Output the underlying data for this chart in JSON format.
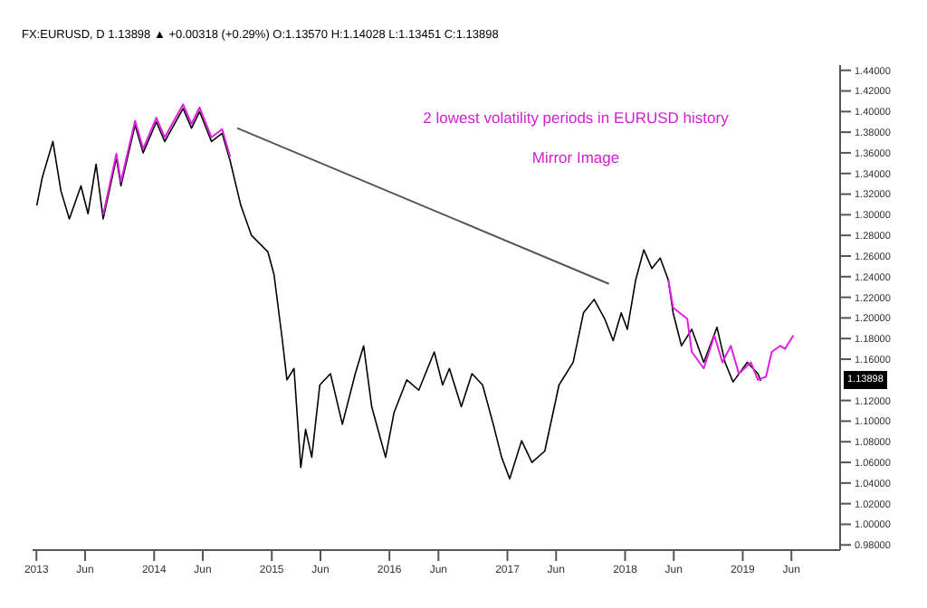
{
  "chart_data": {
    "type": "line",
    "title": "FX:EURUSD, D 1.13898 ▲ +0.00318 (+0.29%) O:1.13570 H:1.14028 L:1.13451 C:1.13898",
    "annotations": [
      "2 lowest volatility periods in EURUSD history",
      "Mirror Image",
      "1.13898"
    ],
    "series": [
      {
        "color": "#000000",
        "x": [
          "2013-01-02",
          "2013-01-19",
          "2013-02-21",
          "2013-03-18",
          "2013-04-13",
          "2013-05-19",
          "2013-06-10",
          "2013-07-05",
          "2013-07-27",
          "2013-09-06",
          "2013-09-20",
          "2013-11-03",
          "2013-11-28",
          "2014-01-08",
          "2014-02-03",
          "2014-04-01",
          "2014-04-27",
          "2014-05-22",
          "2014-06-28",
          "2014-07-31",
          "2014-08-25",
          "2014-09-27",
          "2014-10-30",
          "2014-12-20",
          "2015-01-08",
          "2015-02-03",
          "2015-02-17",
          "2015-03-11",
          "2015-04-01",
          "2015-04-16",
          "2015-05-05",
          "2015-05-30",
          "2015-07-02",
          "2015-08-08",
          "2015-09-17",
          "2015-10-13",
          "2015-11-07",
          "2015-12-20",
          "2016-01-15",
          "2016-02-24",
          "2016-04-01",
          "2016-05-19",
          "2016-06-14",
          "2016-07-05",
          "2016-08-11",
          "2016-09-13",
          "2016-10-16",
          "2016-11-18",
          "2016-12-14",
          "2017-01-08",
          "2017-02-14",
          "2017-03-18",
          "2017-04-27",
          "2017-06-10",
          "2017-07-24",
          "2017-08-25",
          "2017-09-27",
          "2017-10-30",
          "2017-11-25",
          "2017-12-20",
          "2018-01-08",
          "2018-02-03",
          "2018-02-28",
          "2018-03-25",
          "2018-04-20",
          "2018-05-15",
          "2018-05-30",
          "2018-06-25",
          "2018-07-27",
          "2018-09-02",
          "2018-10-13",
          "2018-11-07",
          "2018-12-02",
          "2019-01-15",
          "2019-02-17",
          "2019-02-26"
        ],
        "values": [
          1.309,
          1.336,
          1.371,
          1.323,
          1.296,
          1.328,
          1.301,
          1.349,
          1.296,
          1.355,
          1.328,
          1.387,
          1.36,
          1.39,
          1.371,
          1.403,
          1.384,
          1.4,
          1.371,
          1.379,
          1.352,
          1.309,
          1.28,
          1.264,
          1.242,
          1.178,
          1.14,
          1.151,
          1.055,
          1.092,
          1.065,
          1.135,
          1.146,
          1.097,
          1.146,
          1.173,
          1.114,
          1.065,
          1.108,
          1.14,
          1.13,
          1.167,
          1.135,
          1.151,
          1.114,
          1.146,
          1.135,
          1.097,
          1.065,
          1.044,
          1.081,
          1.06,
          1.071,
          1.135,
          1.157,
          1.205,
          1.218,
          1.199,
          1.178,
          1.205,
          1.189,
          1.237,
          1.266,
          1.248,
          1.258,
          1.237,
          1.205,
          1.173,
          1.189,
          1.157,
          1.191,
          1.157,
          1.138,
          1.157,
          1.146,
          1.139
        ]
      },
      {
        "color": "#e020e0",
        "x": [
          "2013-07-27",
          "2013-09-06",
          "2013-09-20",
          "2013-11-03",
          "2013-11-28",
          "2014-01-08",
          "2014-02-03",
          "2014-04-01",
          "2014-04-27",
          "2014-05-22",
          "2014-06-28",
          "2014-07-31",
          "2014-08-25"
        ],
        "values": [
          1.3,
          1.359,
          1.332,
          1.391,
          1.364,
          1.394,
          1.375,
          1.407,
          1.388,
          1.404,
          1.375,
          1.383,
          1.356
        ]
      },
      {
        "color": "#e020e0",
        "x": [
          "2018-05-15",
          "2018-05-30",
          "2018-07-13",
          "2018-07-27",
          "2018-09-02",
          "2018-10-05",
          "2018-10-30",
          "2018-11-25",
          "2018-12-20",
          "2019-01-26",
          "2019-02-17",
          "2019-03-14",
          "2019-04-01",
          "2019-04-27",
          "2019-05-12",
          "2019-06-07"
        ],
        "values": [
          1.237,
          1.21,
          1.199,
          1.167,
          1.151,
          1.183,
          1.157,
          1.173,
          1.146,
          1.157,
          1.14,
          1.143,
          1.167,
          1.173,
          1.17,
          1.183
        ]
      },
      {
        "color": "#555555",
        "x": [
          "2014-09-16",
          "2017-11-12"
        ],
        "values": [
          1.384,
          1.233
        ]
      }
    ],
    "xlim": [
      "2012-12-20",
      "2019-10-30"
    ],
    "xticks": [
      {
        "value": "2013-01-01",
        "label": "2013"
      },
      {
        "value": "2013-06-01",
        "label": "Jun"
      },
      {
        "value": "2014-01-01",
        "label": "2014"
      },
      {
        "value": "2014-06-01",
        "label": "Jun"
      },
      {
        "value": "2015-01-01",
        "label": "2015"
      },
      {
        "value": "2015-06-01",
        "label": "Jun"
      },
      {
        "value": "2016-01-01",
        "label": "2016"
      },
      {
        "value": "2016-06-01",
        "label": "Jun"
      },
      {
        "value": "2017-01-01",
        "label": "2017"
      },
      {
        "value": "2017-06-01",
        "label": "Jun"
      },
      {
        "value": "2018-01-01",
        "label": "2018"
      },
      {
        "value": "2018-06-01",
        "label": "Jun"
      },
      {
        "value": "2019-01-01",
        "label": "2019"
      },
      {
        "value": "2019-06-01",
        "label": "Jun"
      }
    ],
    "ylim": [
      0.975,
      1.445
    ],
    "yticks": [
      {
        "value": 0.98,
        "label": "0.98000"
      },
      {
        "value": 1.0,
        "label": "1.00000"
      },
      {
        "value": 1.02,
        "label": "1.02000"
      },
      {
        "value": 1.04,
        "label": "1.04000"
      },
      {
        "value": 1.06,
        "label": "1.06000"
      },
      {
        "value": 1.08,
        "label": "1.08000"
      },
      {
        "value": 1.1,
        "label": "1.10000"
      },
      {
        "value": 1.12,
        "label": "1.12000"
      },
      {
        "value": 1.16,
        "label": "1.16000"
      },
      {
        "value": 1.18,
        "label": "1.18000"
      },
      {
        "value": 1.2,
        "label": "1.20000"
      },
      {
        "value": 1.22,
        "label": "1.22000"
      },
      {
        "value": 1.24,
        "label": "1.24000"
      },
      {
        "value": 1.26,
        "label": "1.26000"
      },
      {
        "value": 1.28,
        "label": "1.28000"
      },
      {
        "value": 1.3,
        "label": "1.30000"
      },
      {
        "value": 1.32,
        "label": "1.32000"
      },
      {
        "value": 1.34,
        "label": "1.34000"
      },
      {
        "value": 1.36,
        "label": "1.36000"
      },
      {
        "value": 1.38,
        "label": "1.38000"
      },
      {
        "value": 1.4,
        "label": "1.40000"
      },
      {
        "value": 1.42,
        "label": "1.42000"
      },
      {
        "value": 1.44,
        "label": "1.44000"
      }
    ],
    "grid": false,
    "legend": false,
    "marker": "none",
    "line_style": "solid"
  }
}
